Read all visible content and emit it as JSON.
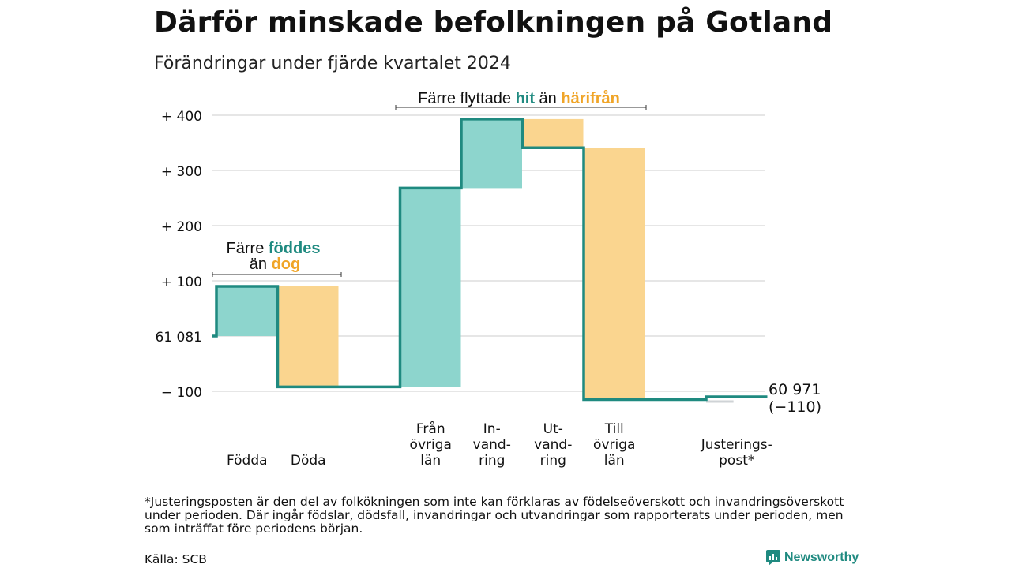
{
  "title": "Därför minskade befolkningen på Gotland",
  "subtitle": "Förändringar under fjärde kvartalet 2024",
  "footnote": "*Justeringsposten är den del av folkökningen som inte kan förklaras av födelseöverskott och invandringsöverskott under perioden. Där ingår födslar, dödsfall, invandringar och utvandringar som rapporterats under perioden, men som inträffat före periodens början.",
  "source": "Källa: SCB",
  "brand": {
    "name": "Newsworthy",
    "icon": "newsworthy-logo-icon"
  },
  "colors": {
    "increase": "#8dd5cd",
    "decrease": "#fad58f",
    "line": "#1f8a80",
    "adjustment": "#cfd3d6",
    "grid": "#dddddd",
    "teal_text": "#1f8a80",
    "orange_text": "#f0a528"
  },
  "annotations": {
    "births_deaths": {
      "line1_a": "Färre ",
      "line1_b": "föddes",
      "line2_a": "än ",
      "line2_b": "dog"
    },
    "migration": {
      "a": "Färre flyttade ",
      "b": "hit",
      "c": " än ",
      "d": "härifrån"
    }
  },
  "chart_data": {
    "type": "waterfall",
    "start_value": 61081,
    "start_label": "61 081",
    "end_label_value": "60 971",
    "end_label_change": "(−110)",
    "y_ticks": [
      {
        "value": 400,
        "label": "+ 400"
      },
      {
        "value": 300,
        "label": "+ 300"
      },
      {
        "value": 200,
        "label": "+ 200"
      },
      {
        "value": 100,
        "label": "+ 100"
      },
      {
        "value": 0,
        "label": "61 081"
      },
      {
        "value": -100,
        "label": "− 100"
      }
    ],
    "ylim": [
      -125,
      430
    ],
    "grid": true,
    "steps": [
      {
        "key": "fodda",
        "label_lines": [
          "Födda"
        ],
        "change": 90,
        "kind": "increase"
      },
      {
        "key": "doda",
        "label_lines": [
          "Döda"
        ],
        "change": -182,
        "kind": "decrease"
      },
      {
        "key": "gap",
        "label_lines": [],
        "change": 0,
        "kind": "none"
      },
      {
        "key": "fran-ovriga-lan",
        "label_lines": [
          "Från",
          "övriga",
          "län"
        ],
        "change": 360,
        "kind": "increase"
      },
      {
        "key": "invandring",
        "label_lines": [
          "In-",
          "vand-",
          "ring"
        ],
        "change": 125,
        "kind": "increase"
      },
      {
        "key": "utvandring",
        "label_lines": [
          "Ut-",
          "vand-",
          "ring"
        ],
        "change": -52,
        "kind": "decrease"
      },
      {
        "key": "till-ovriga-lan",
        "label_lines": [
          "Till",
          "övriga",
          "län"
        ],
        "change": -456,
        "kind": "decrease"
      },
      {
        "key": "gap2",
        "label_lines": [],
        "change": 0,
        "kind": "none"
      },
      {
        "key": "justeringspost",
        "label_lines": [
          "Justerings-",
          "post*"
        ],
        "change": 5,
        "kind": "adjustment"
      }
    ]
  }
}
